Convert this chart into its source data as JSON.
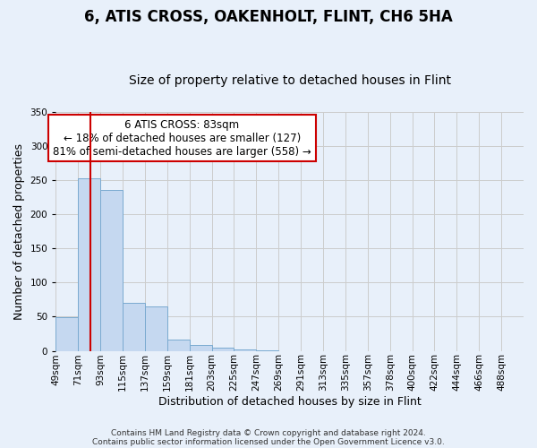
{
  "title": "6, ATIS CROSS, OAKENHOLT, FLINT, CH6 5HA",
  "subtitle": "Size of property relative to detached houses in Flint",
  "xlabel": "Distribution of detached houses by size in Flint",
  "ylabel": "Number of detached properties",
  "footnote1": "Contains HM Land Registry data © Crown copyright and database right 2024.",
  "footnote2": "Contains public sector information licensed under the Open Government Licence v3.0.",
  "bar_color": "#c5d8f0",
  "bar_edge_color": "#7aaad0",
  "grid_color": "#cccccc",
  "bg_color": "#e8f0fa",
  "bins": [
    "49sqm",
    "71sqm",
    "93sqm",
    "115sqm",
    "137sqm",
    "159sqm",
    "181sqm",
    "203sqm",
    "225sqm",
    "247sqm",
    "269sqm",
    "291sqm",
    "313sqm",
    "335sqm",
    "357sqm",
    "378sqm",
    "400sqm",
    "422sqm",
    "444sqm",
    "466sqm",
    "488sqm"
  ],
  "values": [
    49,
    252,
    236,
    70,
    65,
    17,
    8,
    4,
    2,
    1,
    0,
    0,
    0,
    0,
    0,
    0,
    0,
    0,
    0,
    0,
    0
  ],
  "ylim": [
    0,
    350
  ],
  "yticks": [
    0,
    50,
    100,
    150,
    200,
    250,
    300,
    350
  ],
  "annotation_title": "6 ATIS CROSS: 83sqm",
  "annotation_line1": "← 18% of detached houses are smaller (127)",
  "annotation_line2": "81% of semi-detached houses are larger (558) →",
  "vline_color": "#cc0000",
  "annotation_box_edge": "#cc0000",
  "title_fontsize": 12,
  "subtitle_fontsize": 10,
  "axis_label_fontsize": 9,
  "tick_fontsize": 7.5,
  "annotation_fontsize": 8.5,
  "footnote_fontsize": 6.5
}
